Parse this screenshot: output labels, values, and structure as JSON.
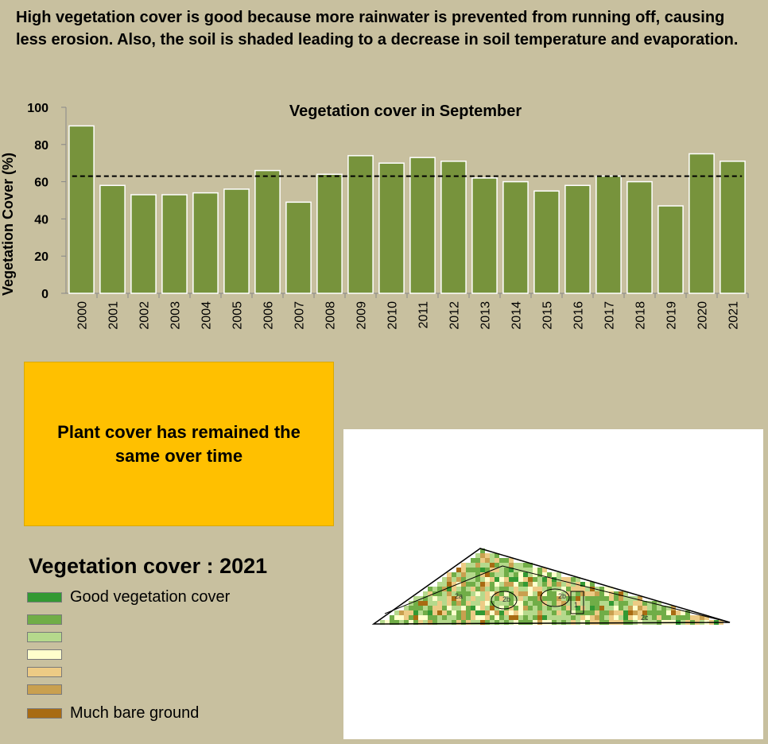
{
  "header": {
    "text": "High vegetation cover is good because more rainwater is prevented from running off, causing less erosion. Also, the soil is shaded leading to a decrease in soil temperature and evaporation."
  },
  "chart_data": {
    "type": "bar",
    "title": "Vegetation cover in September",
    "y_label": "Vegetation Cover (%)",
    "categories": [
      "2000",
      "2001",
      "2002",
      "2003",
      "2004",
      "2005",
      "2006",
      "2007",
      "2008",
      "2009",
      "2010",
      "2011",
      "2012",
      "2013",
      "2014",
      "2015",
      "2016",
      "2017",
      "2018",
      "2019",
      "2020",
      "2021"
    ],
    "values": [
      90,
      58,
      53,
      53,
      54,
      56,
      66,
      49,
      64,
      74,
      70,
      73,
      71,
      62,
      60,
      55,
      58,
      63,
      60,
      47,
      75,
      71
    ],
    "color": "#77933c",
    "ylim": [
      0,
      100
    ],
    "yticks": [
      0,
      20,
      40,
      60,
      80,
      100
    ],
    "reference_line": {
      "value": 63,
      "style": "dashed",
      "color": "#000000"
    }
  },
  "callout": {
    "text": "Plant cover has remained the same over time"
  },
  "legend": {
    "title": "Vegetation cover : 2021",
    "items": [
      {
        "label": "Good vegetation cover",
        "color": "#339933"
      },
      {
        "label": null,
        "color": "#70ad47"
      },
      {
        "label": null,
        "color": "#b5d98c"
      },
      {
        "label": null,
        "color": "#ffffcc"
      },
      {
        "label": null,
        "color": "#edcb85"
      },
      {
        "label": null,
        "color": "#c9a04f"
      },
      {
        "label": "Much bare ground",
        "color": "#a86b12"
      }
    ]
  },
  "map": {
    "labels": [
      "2a",
      "2b",
      "2b",
      "1",
      "2c"
    ]
  }
}
